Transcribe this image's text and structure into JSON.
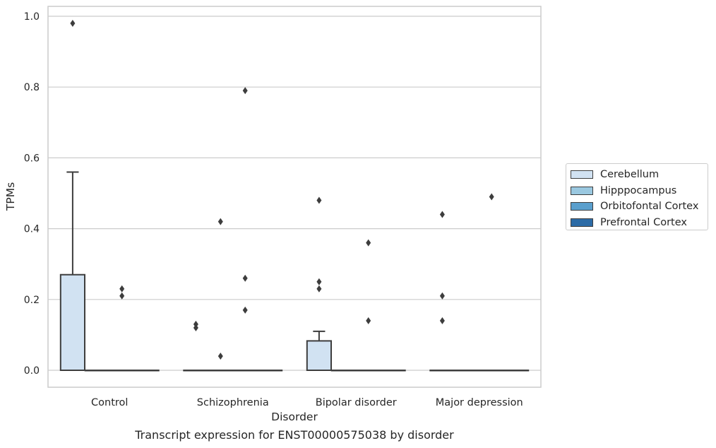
{
  "chart_data": {
    "type": "box",
    "xlabel": "Disorder",
    "ylabel": "TPMs",
    "caption": "Transcript expression for ENST00000575038 by disorder",
    "categories": [
      "Control",
      "Schizophrenia",
      "Bipolar disorder",
      "Major depression"
    ],
    "ylim": [
      -0.046,
      1.03
    ],
    "yticks": [
      "0.0",
      "0.2",
      "0.4",
      "0.6",
      "0.8",
      "1.0"
    ],
    "ytick_values": [
      0,
      0.2,
      0.4,
      0.6,
      0.8,
      1.0
    ],
    "grid": true,
    "legend_position": "right",
    "series": [
      {
        "name": "Cerebellum",
        "color": "#d1e2f2",
        "boxes": [
          {
            "q1": 0,
            "median": 0,
            "q3": 0.27,
            "whisker_low": 0,
            "whisker_high": 0.56,
            "outliers": [
              0.98
            ]
          },
          {
            "q1": 0,
            "median": 0,
            "q3": 0,
            "whisker_low": 0,
            "whisker_high": 0,
            "outliers": [
              0.13,
              0.12
            ]
          },
          {
            "q1": 0,
            "median": 0,
            "q3": 0.083,
            "whisker_low": 0,
            "whisker_high": 0.11,
            "outliers": [
              0.48,
              0.25,
              0.23
            ]
          },
          {
            "q1": 0,
            "median": 0,
            "q3": 0,
            "whisker_low": 0,
            "whisker_high": 0,
            "outliers": [
              0.44,
              0.21,
              0.14
            ]
          }
        ]
      },
      {
        "name": "Hipppocampus",
        "color": "#9ac8e0",
        "boxes": [
          {
            "q1": 0,
            "median": 0,
            "q3": 0,
            "whisker_low": 0,
            "whisker_high": 0,
            "outliers": []
          },
          {
            "q1": 0,
            "median": 0,
            "q3": 0,
            "whisker_low": 0,
            "whisker_high": 0,
            "outliers": [
              0.42,
              0.04
            ]
          },
          {
            "q1": 0,
            "median": 0,
            "q3": 0,
            "whisker_low": 0,
            "whisker_high": 0,
            "outliers": []
          },
          {
            "q1": 0,
            "median": 0,
            "q3": 0,
            "whisker_low": 0,
            "whisker_high": 0,
            "outliers": []
          }
        ]
      },
      {
        "name": "Orbitofontal Cortex",
        "color": "#5a9fcd",
        "boxes": [
          {
            "q1": 0,
            "median": 0,
            "q3": 0,
            "whisker_low": 0,
            "whisker_high": 0,
            "outliers": [
              0.23,
              0.21
            ]
          },
          {
            "q1": 0,
            "median": 0,
            "q3": 0,
            "whisker_low": 0,
            "whisker_high": 0,
            "outliers": [
              0.79,
              0.26,
              0.17
            ]
          },
          {
            "q1": 0,
            "median": 0,
            "q3": 0,
            "whisker_low": 0,
            "whisker_high": 0,
            "outliers": [
              0.36,
              0.14
            ]
          },
          {
            "q1": 0,
            "median": 0,
            "q3": 0,
            "whisker_low": 0,
            "whisker_high": 0,
            "outliers": [
              0.49
            ]
          }
        ]
      },
      {
        "name": "Prefrontal Cortex",
        "color": "#2c6ba6",
        "boxes": [
          {
            "q1": 0,
            "median": 0,
            "q3": 0,
            "whisker_low": 0,
            "whisker_high": 0,
            "outliers": []
          },
          {
            "q1": 0,
            "median": 0,
            "q3": 0,
            "whisker_low": 0,
            "whisker_high": 0,
            "outliers": []
          },
          {
            "q1": 0,
            "median": 0,
            "q3": 0,
            "whisker_low": 0,
            "whisker_high": 0,
            "outliers": []
          },
          {
            "q1": 0,
            "median": 0,
            "q3": 0,
            "whisker_low": 0,
            "whisker_high": 0,
            "outliers": []
          }
        ]
      }
    ]
  }
}
